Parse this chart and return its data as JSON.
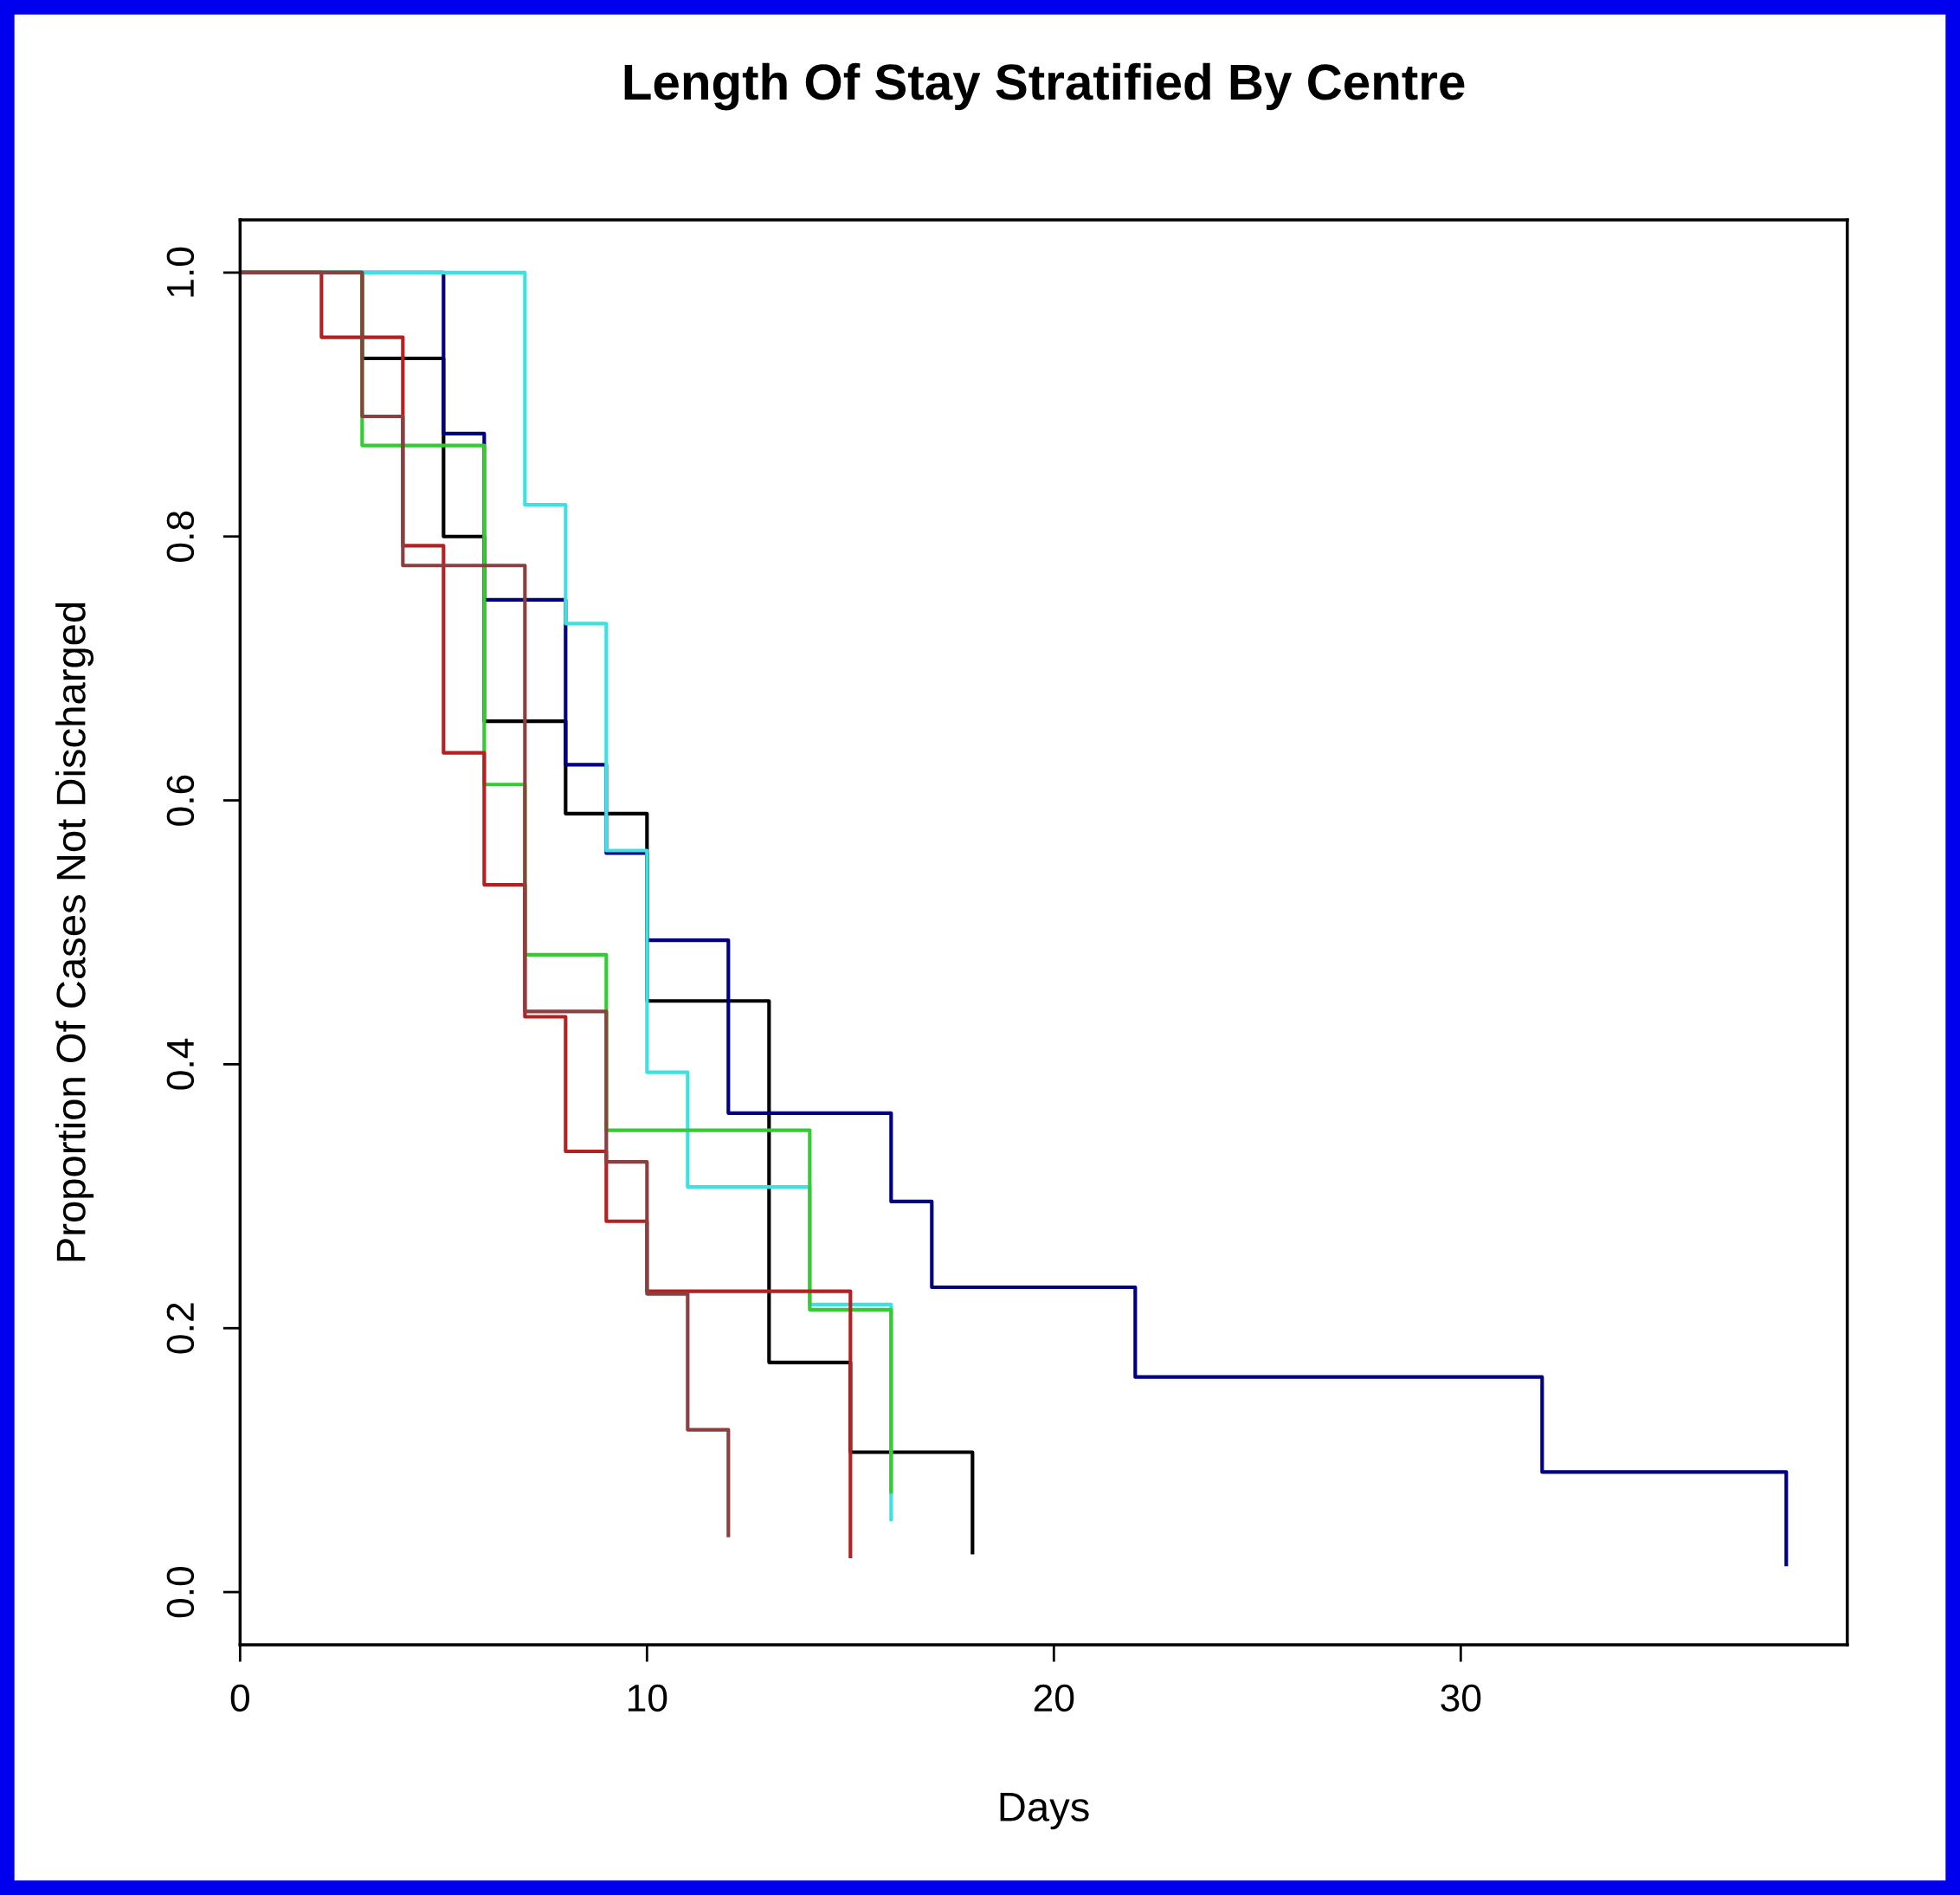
{
  "chart_data": {
    "type": "step",
    "title": "Length Of Stay Stratified By Centre",
    "xlabel": "Days",
    "ylabel": "Proportion Of Cases Not Discharged",
    "xlim": [
      0,
      39.5
    ],
    "xticks": [
      0,
      10,
      20,
      30
    ],
    "ylim": [
      -0.04,
      1.04
    ],
    "yticks": [
      {
        "value": 0,
        "label": "0.0"
      },
      {
        "value": 0.2,
        "label": "0.2"
      },
      {
        "value": 0.4,
        "label": "0.4"
      },
      {
        "value": 0.6,
        "label": "0.6"
      },
      {
        "value": 0.8,
        "label": "0.8"
      },
      {
        "value": 1,
        "label": "1.0"
      }
    ],
    "grid": false,
    "legend": false,
    "line_style": "solid",
    "series": [
      {
        "color": "#000000",
        "x": [
          0,
          3,
          5,
          6,
          8,
          10,
          13,
          15,
          18
        ],
        "values": [
          1.0,
          0.935,
          0.8,
          0.66,
          0.59,
          0.448,
          0.174,
          0.106,
          0.03
        ]
      },
      {
        "color": "#000080",
        "x": [
          0,
          5,
          6,
          8,
          9,
          10,
          12,
          16,
          17,
          22,
          32,
          38
        ],
        "values": [
          1.0,
          0.878,
          0.752,
          0.627,
          0.56,
          0.494,
          0.363,
          0.296,
          0.231,
          0.163,
          0.091,
          0.021
        ]
      },
      {
        "color": "#40e0e0",
        "x": [
          0,
          7,
          8,
          9,
          10,
          11,
          14,
          16
        ],
        "values": [
          1.0,
          0.824,
          0.734,
          0.562,
          0.394,
          0.307,
          0.218,
          0.055
        ]
      },
      {
        "color": "#33cc33",
        "x": [
          0,
          3,
          6,
          7,
          9,
          14,
          16
        ],
        "values": [
          1.0,
          0.869,
          0.612,
          0.483,
          0.35,
          0.214,
          0.076
        ]
      },
      {
        "color": "#b22222",
        "x": [
          0,
          2,
          4,
          5,
          6,
          7,
          8,
          9,
          10,
          15
        ],
        "values": [
          1.0,
          0.951,
          0.793,
          0.636,
          0.536,
          0.436,
          0.334,
          0.281,
          0.228,
          0.027
        ]
      },
      {
        "color": "#8b4040",
        "x": [
          0,
          3,
          4,
          7,
          9,
          10,
          11,
          12
        ],
        "values": [
          1.0,
          0.891,
          0.778,
          0.44,
          0.326,
          0.226,
          0.123,
          0.043
        ]
      }
    ]
  }
}
